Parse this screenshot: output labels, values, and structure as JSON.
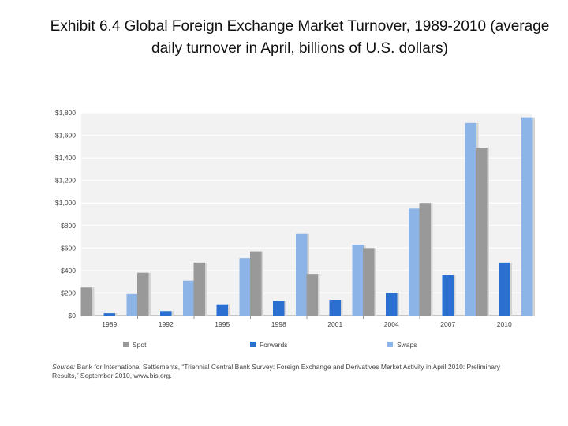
{
  "title": "Exhibit 6.4  Global Foreign Exchange Market Turnover, 1989-2010 (average daily turnover in April, billions of U.S. dollars)",
  "source": {
    "label": "Source:",
    "text": " Bank for International Settlements, “Triennial Central Bank Survey: Foreign Exchange and Derivatives Market Activity in April 2010: Preliminary Results,” September 2010, www.bis.org."
  },
  "chart_data": {
    "type": "bar",
    "categories": [
      "1989",
      "1992",
      "1995",
      "1998",
      "2001",
      "2004",
      "2007",
      "2010"
    ],
    "series": [
      {
        "name": "Spot",
        "color": "#999999",
        "values": [
          250,
          380,
          470,
          570,
          370,
          600,
          1000,
          1490
        ]
      },
      {
        "name": "Forwards",
        "color": "#2b6fd1",
        "values": [
          20,
          40,
          100,
          130,
          140,
          200,
          360,
          470
        ]
      },
      {
        "name": "Swaps",
        "color": "#8db4e6",
        "values": [
          190,
          310,
          510,
          730,
          630,
          950,
          1710,
          1760
        ]
      }
    ],
    "ylim": [
      0,
      1800
    ],
    "yticks": [
      {
        "value": 0,
        "label": "$0"
      },
      {
        "value": 200,
        "label": "$200"
      },
      {
        "value": 400,
        "label": "$400"
      },
      {
        "value": 600,
        "label": "$600"
      },
      {
        "value": 800,
        "label": "$800"
      },
      {
        "value": 1000,
        "label": "$1,000"
      },
      {
        "value": 1200,
        "label": "$1,200"
      },
      {
        "value": 1400,
        "label": "$1,400"
      },
      {
        "value": 1600,
        "label": "$1,600"
      },
      {
        "value": 1800,
        "label": "$1,800"
      }
    ],
    "grid": true,
    "legend_position": "bottom",
    "xlabel": "",
    "ylabel": ""
  }
}
